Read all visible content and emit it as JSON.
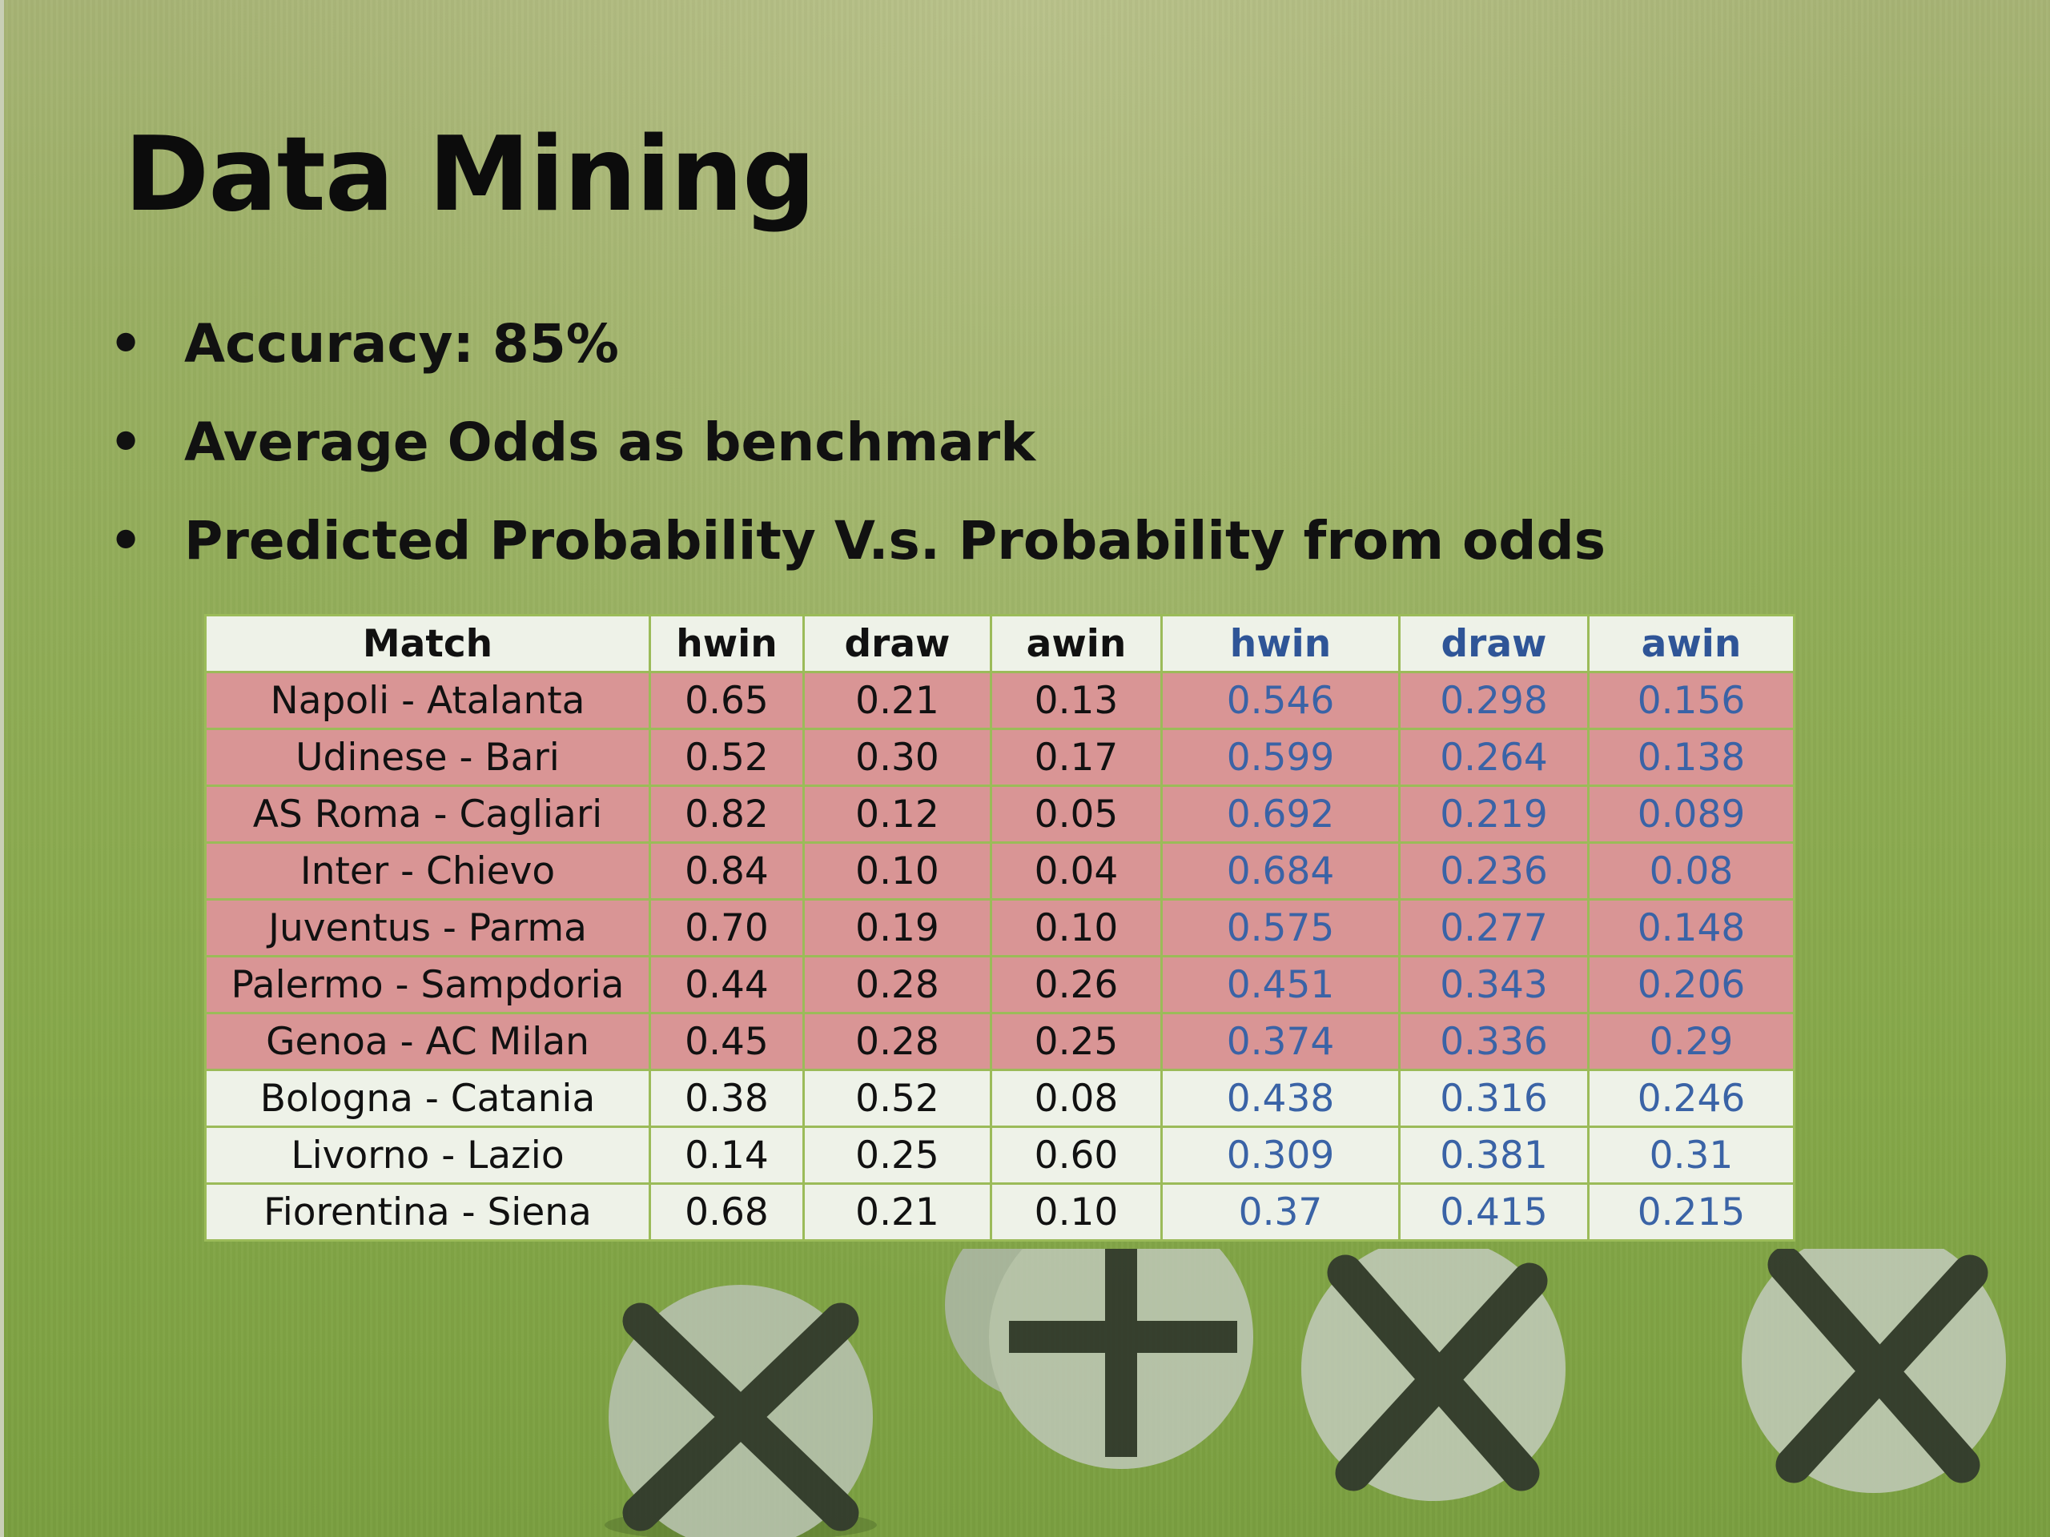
{
  "title": "Data Mining",
  "bullets": [
    "Accuracy: 85%",
    "Average Odds as benchmark",
    "Predicted Probability V.s. Probability from odds"
  ],
  "table": {
    "headers": [
      "Match",
      "hwin",
      "draw",
      "awin",
      "hwin",
      "draw",
      "awin"
    ],
    "rows": [
      {
        "highlight": true,
        "cells": [
          "Napoli - Atalanta",
          "0.65",
          "0.21",
          "0.13",
          "0.546",
          "0.298",
          "0.156"
        ]
      },
      {
        "highlight": true,
        "cells": [
          "Udinese - Bari",
          "0.52",
          "0.30",
          "0.17",
          "0.599",
          "0.264",
          "0.138"
        ]
      },
      {
        "highlight": true,
        "cells": [
          "AS Roma - Cagliari",
          "0.82",
          "0.12",
          "0.05",
          "0.692",
          "0.219",
          "0.089"
        ]
      },
      {
        "highlight": true,
        "cells": [
          "Inter - Chievo",
          "0.84",
          "0.10",
          "0.04",
          "0.684",
          "0.236",
          "0.08"
        ]
      },
      {
        "highlight": true,
        "cells": [
          "Juventus - Parma",
          "0.70",
          "0.19",
          "0.10",
          "0.575",
          "0.277",
          "0.148"
        ]
      },
      {
        "highlight": true,
        "cells": [
          "Palermo - Sampdoria",
          "0.44",
          "0.28",
          "0.26",
          "0.451",
          "0.343",
          "0.206"
        ]
      },
      {
        "highlight": true,
        "cells": [
          "Genoa - AC Milan",
          "0.45",
          "0.28",
          "0.25",
          "0.374",
          "0.336",
          "0.29"
        ]
      },
      {
        "highlight": false,
        "cells": [
          "Bologna - Catania",
          "0.38",
          "0.52",
          "0.08",
          "0.438",
          "0.316",
          "0.246"
        ]
      },
      {
        "highlight": false,
        "cells": [
          "Livorno - Lazio",
          "0.14",
          "0.25",
          "0.60",
          "0.309",
          "0.381",
          "0.31"
        ]
      },
      {
        "highlight": false,
        "cells": [
          "Fiorentina - Siena",
          "0.68",
          "0.21",
          "0.10",
          "0.37",
          "0.415",
          "0.215"
        ]
      }
    ]
  },
  "colors": {
    "highlight_row": "#d99595",
    "plain_row": "#eef2e8",
    "table_border": "#9bbb59",
    "odds_text": "#3a63a6",
    "background": "#8fac55"
  }
}
